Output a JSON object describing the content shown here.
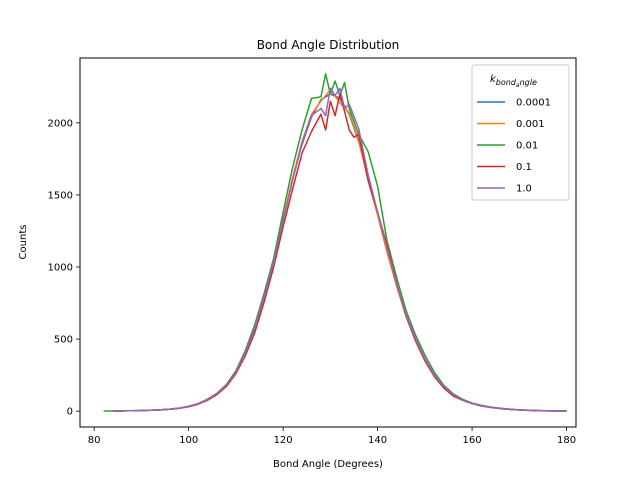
{
  "chart_data": {
    "type": "line",
    "title": "Bond Angle Distribution",
    "xlabel": "Bond Angle (Degrees)",
    "ylabel": "Counts",
    "xlim": [
      77,
      182
    ],
    "ylim": [
      -110,
      2450
    ],
    "xticks": [
      80,
      100,
      120,
      140,
      160,
      180
    ],
    "yticks": [
      0,
      500,
      1000,
      1500,
      2000
    ],
    "grid": false,
    "legend": {
      "title": "k_bond_angle",
      "title_main": "k",
      "title_sub": "bond",
      "title_subsub": "a",
      "title_sub2": "ngle",
      "placement": "top-right"
    },
    "series": [
      {
        "name": "0.0001",
        "color": "#1f77b4",
        "x": [
          84,
          86,
          88,
          90,
          92,
          94,
          96,
          98,
          100,
          102,
          104,
          106,
          108,
          110,
          112,
          114,
          116,
          118,
          120,
          122,
          124,
          126,
          128,
          130,
          132,
          134,
          136,
          138,
          140,
          142,
          144,
          146,
          148,
          150,
          152,
          154,
          156,
          158,
          160,
          162,
          164,
          166,
          168,
          170,
          172,
          174,
          176,
          178,
          180
        ],
        "y": [
          1,
          2,
          3,
          4,
          6,
          9,
          13,
          20,
          32,
          50,
          80,
          120,
          180,
          270,
          400,
          570,
          790,
          1030,
          1320,
          1610,
          1850,
          2040,
          2160,
          2200,
          2170,
          2060,
          1870,
          1620,
          1370,
          1120,
          880,
          670,
          500,
          360,
          250,
          170,
          115,
          80,
          55,
          38,
          27,
          19,
          13,
          9,
          6,
          4,
          3,
          2,
          1
        ]
      },
      {
        "name": "0.001",
        "color": "#ff7f0e",
        "x": [
          84,
          86,
          88,
          90,
          92,
          94,
          96,
          98,
          100,
          102,
          104,
          106,
          108,
          110,
          112,
          114,
          116,
          118,
          120,
          122,
          124,
          126,
          128,
          130,
          132,
          134,
          136,
          138,
          140,
          142,
          144,
          146,
          148,
          150,
          152,
          154,
          156,
          158,
          160,
          162,
          164,
          166,
          168,
          170,
          172,
          174,
          176,
          178,
          180
        ],
        "y": [
          1,
          2,
          3,
          5,
          6,
          10,
          14,
          21,
          34,
          52,
          84,
          125,
          185,
          275,
          410,
          580,
          800,
          1040,
          1330,
          1620,
          1870,
          2060,
          2150,
          2230,
          2140,
          2070,
          1880,
          1600,
          1360,
          1100,
          870,
          660,
          495,
          355,
          245,
          165,
          110,
          78,
          54,
          37,
          26,
          18,
          12,
          8,
          6,
          4,
          3,
          2,
          1
        ]
      },
      {
        "name": "0.01",
        "color": "#2ca02c",
        "x": [
          82,
          84,
          86,
          88,
          90,
          92,
          94,
          96,
          98,
          100,
          102,
          104,
          106,
          108,
          110,
          112,
          114,
          116,
          118,
          120,
          122,
          124,
          126,
          128,
          129,
          130,
          131,
          132,
          133,
          134,
          136,
          138,
          140,
          142,
          144,
          146,
          148,
          150,
          152,
          154,
          156,
          158,
          160,
          162,
          164,
          166,
          168,
          170,
          172,
          174,
          176,
          178,
          180
        ],
        "y": [
          1,
          1,
          2,
          3,
          4,
          6,
          9,
          14,
          21,
          33,
          52,
          82,
          122,
          185,
          280,
          420,
          600,
          820,
          1060,
          1380,
          1690,
          1950,
          2170,
          2180,
          2340,
          2200,
          2290,
          2190,
          2280,
          2100,
          1920,
          1800,
          1560,
          1180,
          930,
          700,
          530,
          390,
          270,
          180,
          120,
          82,
          56,
          40,
          28,
          20,
          14,
          9,
          6,
          4,
          2,
          1,
          0
        ]
      },
      {
        "name": "0.1",
        "color": "#d62728",
        "x": [
          84,
          86,
          88,
          90,
          92,
          94,
          96,
          98,
          100,
          102,
          104,
          106,
          108,
          110,
          112,
          114,
          116,
          118,
          120,
          122,
          124,
          126,
          128,
          129,
          130,
          131,
          132,
          133,
          134,
          135,
          136,
          138,
          140,
          142,
          144,
          146,
          148,
          150,
          152,
          154,
          156,
          158,
          160,
          162,
          164,
          166,
          168,
          170,
          172,
          174,
          176,
          178,
          180
        ],
        "y": [
          1,
          2,
          3,
          4,
          6,
          9,
          13,
          19,
          30,
          48,
          76,
          115,
          172,
          260,
          385,
          545,
          760,
          1000,
          1280,
          1540,
          1790,
          1940,
          2060,
          1950,
          2150,
          2050,
          2200,
          2080,
          1950,
          1900,
          1920,
          1600,
          1380,
          1150,
          890,
          660,
          490,
          350,
          240,
          160,
          105,
          75,
          52,
          36,
          25,
          17,
          12,
          8,
          5,
          3,
          2,
          1,
          1
        ]
      },
      {
        "name": "1.0",
        "color": "#9467bd",
        "x": [
          84,
          86,
          88,
          90,
          92,
          94,
          96,
          98,
          100,
          102,
          104,
          106,
          108,
          110,
          112,
          114,
          116,
          118,
          120,
          122,
          124,
          126,
          128,
          129,
          130,
          131,
          132,
          133,
          134,
          136,
          138,
          140,
          142,
          144,
          146,
          148,
          150,
          152,
          154,
          156,
          158,
          160,
          162,
          164,
          166,
          168,
          170,
          172,
          174,
          176,
          178,
          180
        ],
        "y": [
          1,
          2,
          3,
          4,
          6,
          9,
          14,
          21,
          33,
          51,
          82,
          122,
          182,
          272,
          405,
          575,
          795,
          1035,
          1325,
          1600,
          1860,
          2050,
          2100,
          2050,
          2240,
          2190,
          2240,
          2100,
          2130,
          1960,
          1640,
          1380,
          1130,
          880,
          670,
          505,
          365,
          250,
          170,
          113,
          78,
          54,
          38,
          26,
          18,
          12,
          8,
          6,
          4,
          3,
          2,
          1
        ]
      }
    ]
  }
}
